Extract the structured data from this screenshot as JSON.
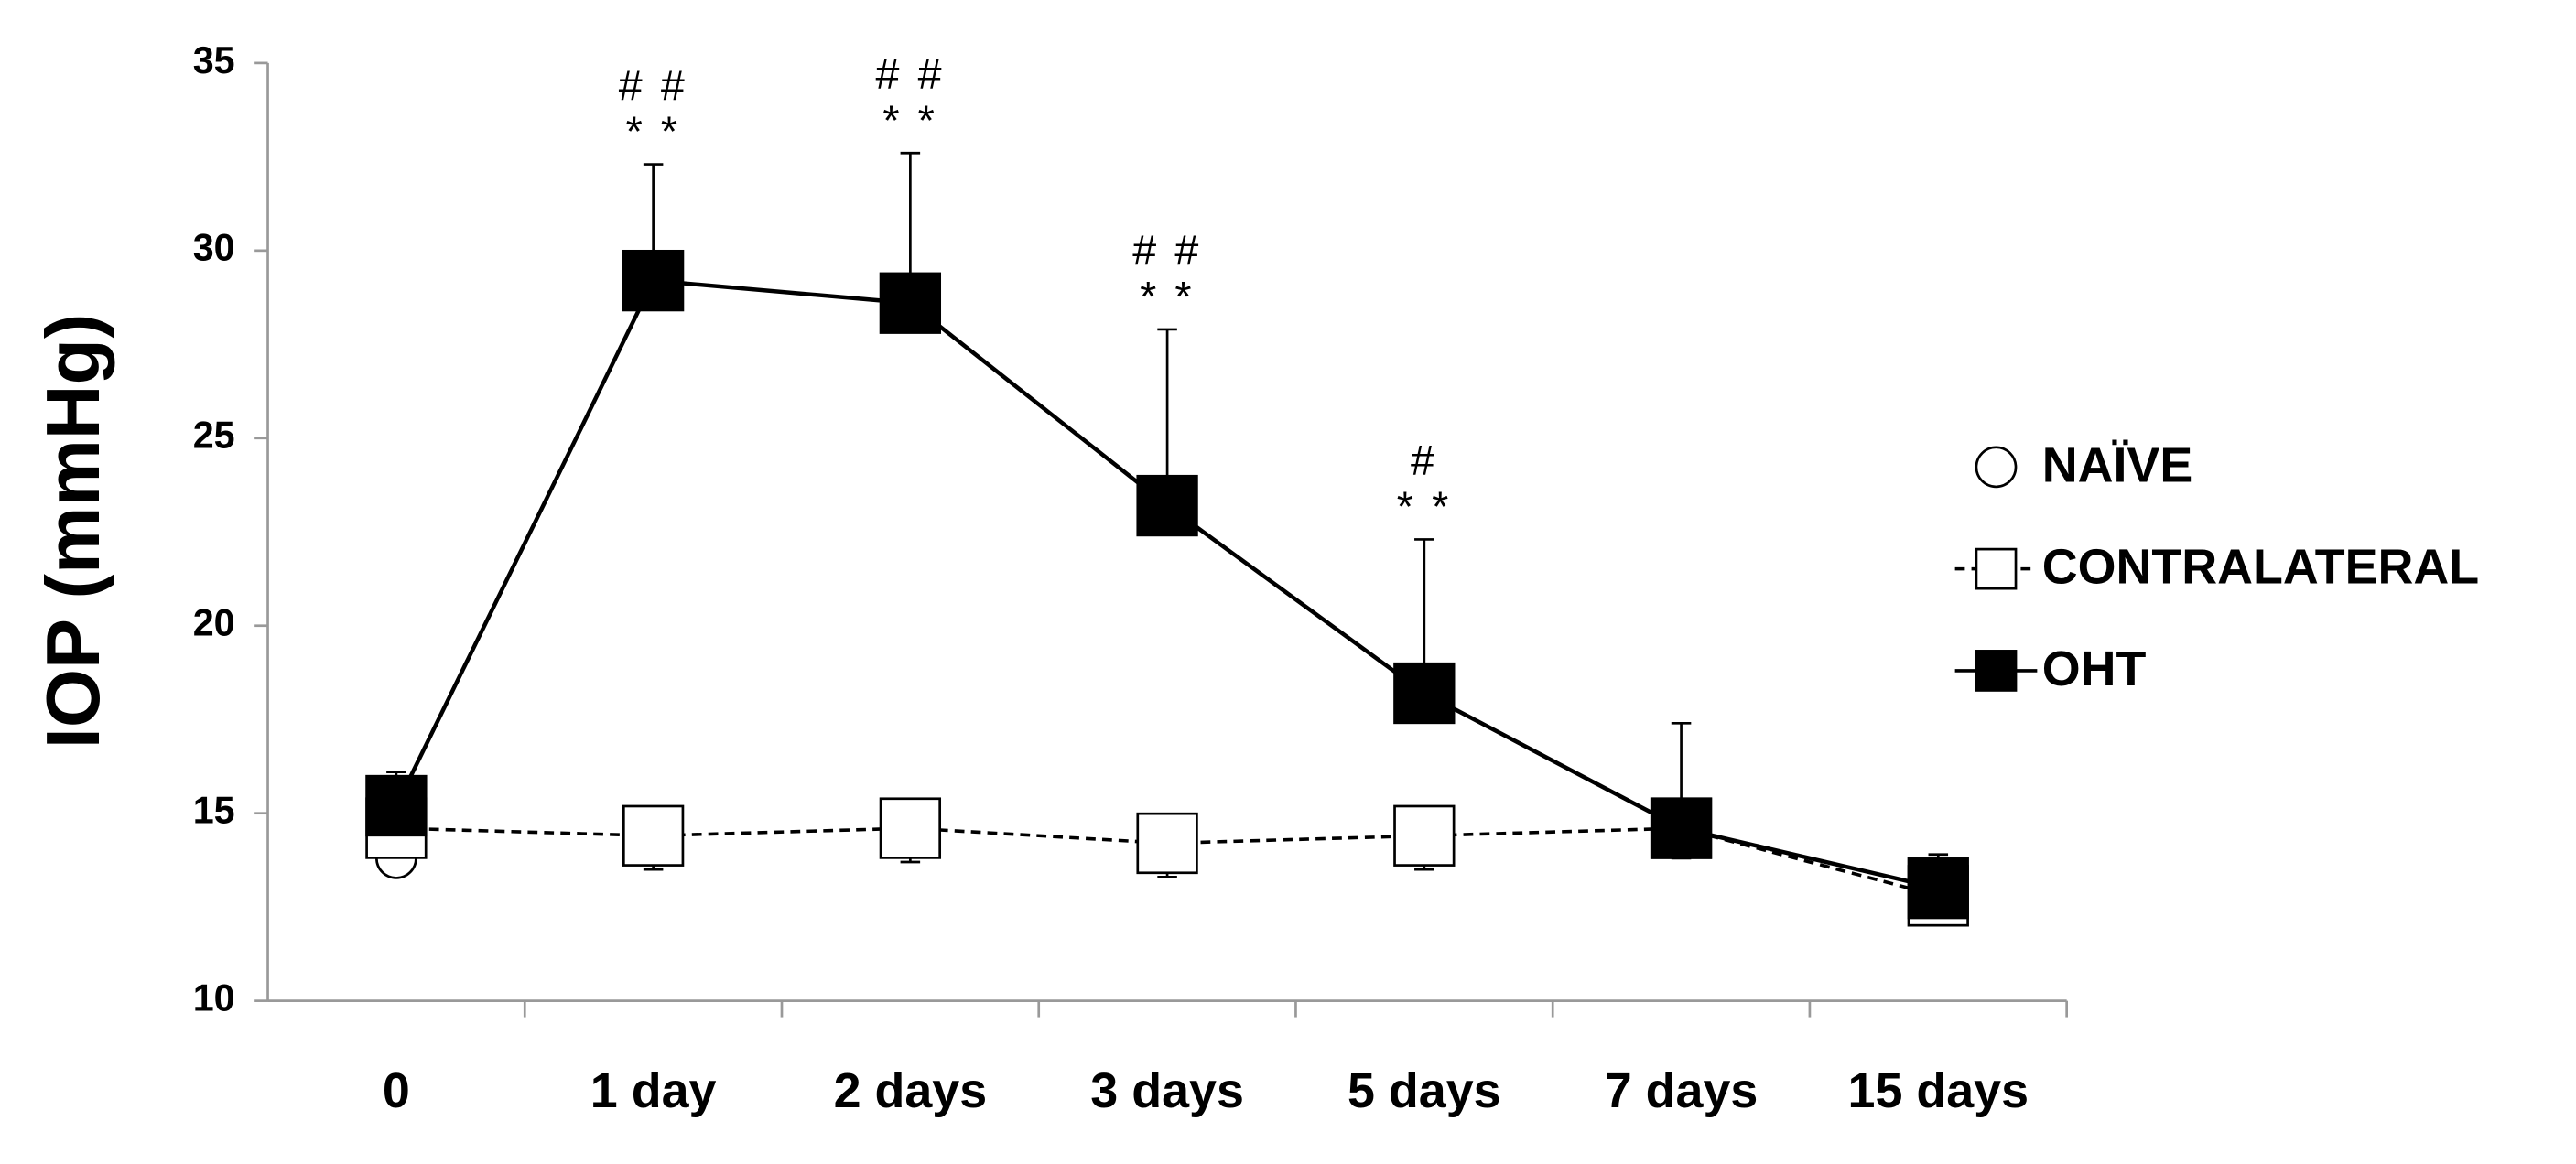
{
  "chart_data": {
    "type": "line",
    "y_label": "IOP (mmHg)",
    "categories": [
      "0",
      "1 day",
      "2 days",
      "3 days",
      "5 days",
      "7 days",
      "15 days"
    ],
    "ylim": [
      10,
      35
    ],
    "yticks": [
      10,
      15,
      20,
      25,
      30,
      35
    ],
    "grid": false,
    "legend_position": "right",
    "series": [
      {
        "name": "NAÏVE",
        "color": "#000000",
        "fill": "#ffffff",
        "marker": "circle",
        "line": "none",
        "values": [
          13.8,
          null,
          null,
          null,
          null,
          null,
          null
        ]
      },
      {
        "name": "CONTRALATERAL",
        "color": "#000000",
        "fill": "#ffffff",
        "marker": "square",
        "line": "dashed",
        "error_direction": "down",
        "values": [
          14.6,
          14.4,
          14.6,
          14.2,
          14.4,
          14.6,
          12.8
        ],
        "errors": [
          0.5,
          0.9,
          0.9,
          0.9,
          0.9,
          0.8,
          0.7
        ]
      },
      {
        "name": "OHT",
        "color": "#000000",
        "fill": "#000000",
        "marker": "square",
        "line": "solid",
        "error_direction": "up",
        "values": [
          15.2,
          29.2,
          28.6,
          23.2,
          18.2,
          14.6,
          13.0
        ],
        "errors": [
          0.9,
          3.1,
          4.0,
          4.7,
          4.1,
          2.8,
          0.9
        ]
      }
    ],
    "annotations": [
      {
        "category": "1 day",
        "lines": [
          "# #",
          "* *"
        ]
      },
      {
        "category": "2 days",
        "lines": [
          "# #",
          "* *"
        ]
      },
      {
        "category": "3 days",
        "lines": [
          "# #",
          "* *"
        ]
      },
      {
        "category": "5 days",
        "lines": [
          "#",
          "* *"
        ]
      }
    ]
  }
}
